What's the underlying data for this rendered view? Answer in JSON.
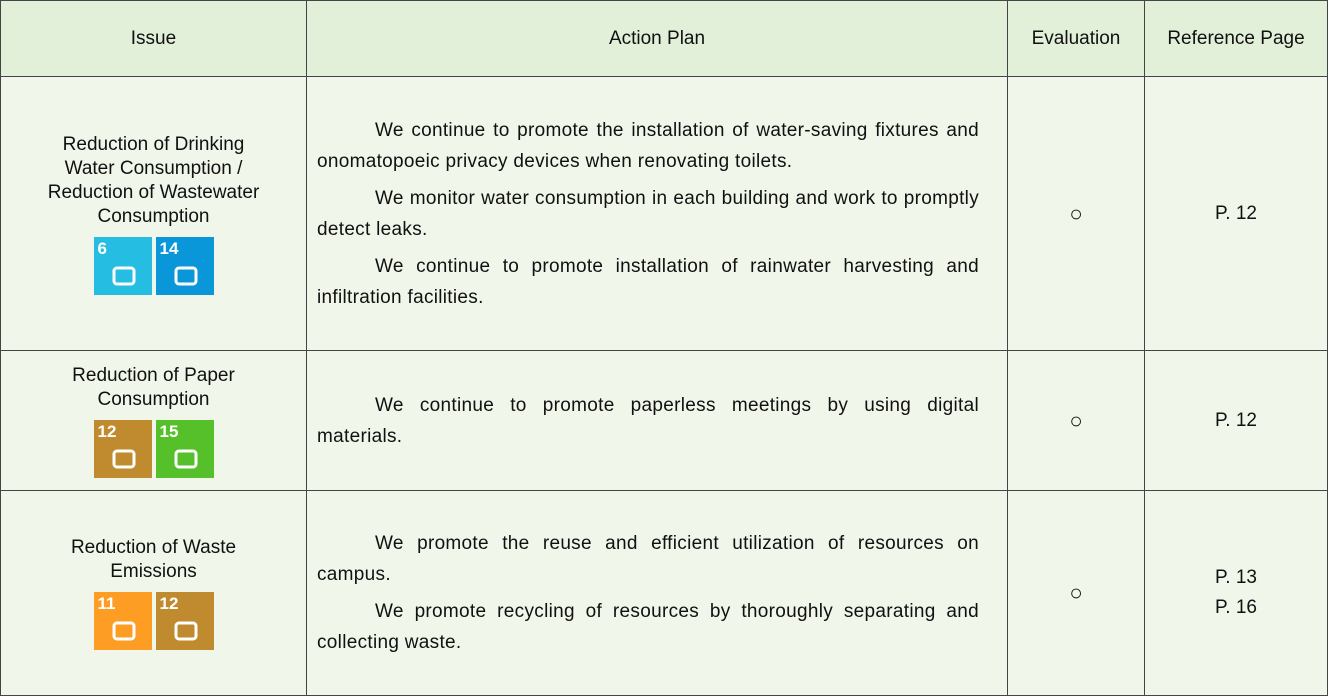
{
  "table": {
    "header": [
      "Issue",
      "Action Plan",
      "Evaluation",
      "Reference Page"
    ],
    "rows": [
      {
        "issue": [
          "Reduction of Drinking",
          "Water Consumption /",
          "Reduction of Wastewater",
          "Consumption"
        ],
        "icons": [
          {
            "number": "6",
            "color": "#26bde2"
          },
          {
            "number": "14",
            "color": "#0a97d9"
          }
        ],
        "plan": [
          "We continue to promote the installation of water-saving fixtures and onomatopoeic privacy devices when renovating toilets.",
          "We monitor water consumption in each building and work to promptly detect leaks.",
          "We continue to promote installation of rainwater harvesting and infiltration facilities."
        ],
        "evaluation": "○",
        "pages": [
          "P. 12"
        ]
      },
      {
        "issue": [
          "Reduction of Paper",
          "Consumption"
        ],
        "icons": [
          {
            "number": "12",
            "color": "#bf8b2e"
          },
          {
            "number": "15",
            "color": "#56c02b"
          }
        ],
        "plan": [
          "We continue to promote paperless meetings by using digital materials."
        ],
        "evaluation": "○",
        "pages": [
          "P. 12"
        ]
      },
      {
        "issue": [
          "Reduction of Waste",
          "Emissions"
        ],
        "icons": [
          {
            "number": "11",
            "color": "#fd9d24"
          },
          {
            "number": "12",
            "color": "#bf8b2e"
          }
        ],
        "plan": [
          "We promote the reuse and efficient utilization of resources on campus.",
          "We promote recycling of resources by thoroughly separating and collecting waste."
        ],
        "evaluation": "○",
        "pages": [
          "P. 13",
          "P. 16"
        ]
      }
    ]
  }
}
